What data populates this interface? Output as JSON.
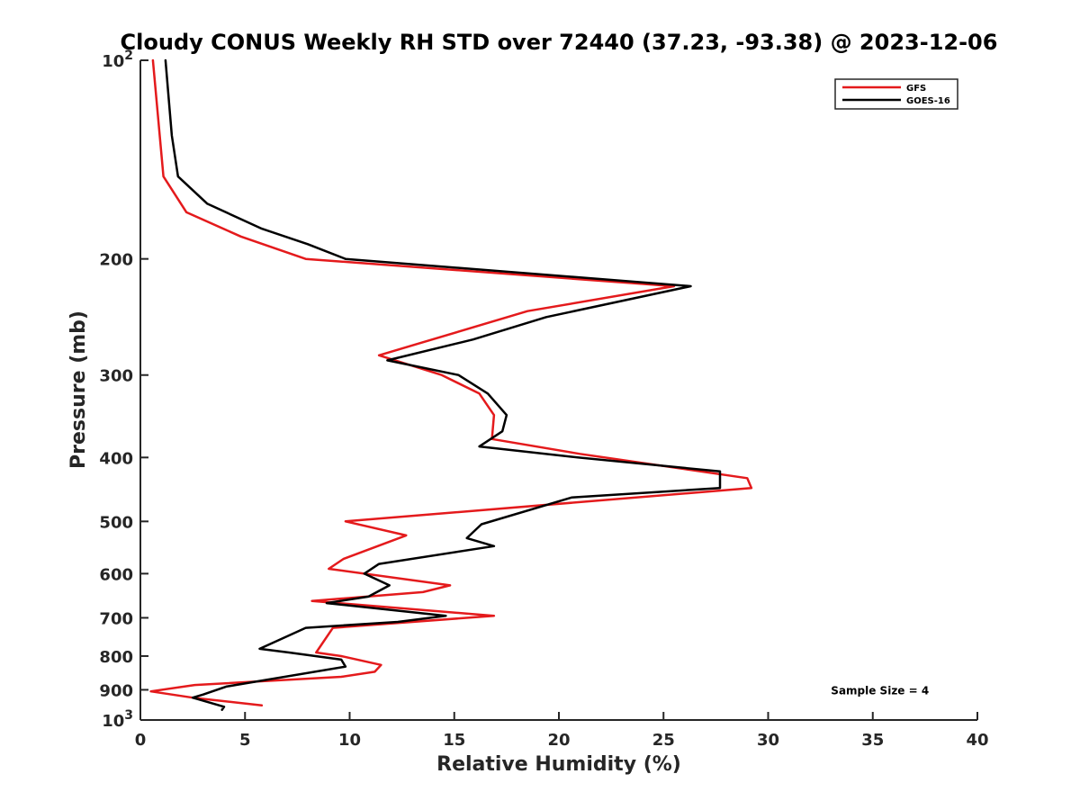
{
  "chart_data": {
    "type": "line",
    "title": "Cloudy CONUS Weekly RH STD over 72440 (37.23, -93.38) @ 2023-12-06",
    "xlabel": "Relative Humidity (%)",
    "ylabel": "Pressure (mb)",
    "xlim": [
      0,
      40
    ],
    "ylim": [
      1000,
      100
    ],
    "y_scale": "log",
    "y_direction": "reversed",
    "grid": false,
    "legend_position": "top-right",
    "x_ticks": [
      0,
      5,
      10,
      15,
      20,
      25,
      30,
      35,
      40
    ],
    "x_tick_labels": [
      "0",
      "5",
      "10",
      "15",
      "20",
      "25",
      "30",
      "35",
      "40"
    ],
    "y_ticks": [
      100,
      200,
      300,
      400,
      500,
      600,
      700,
      800,
      900,
      1000
    ],
    "y_tick_labels": [
      {
        "base": "10",
        "exp": "2"
      },
      {
        "base": "200",
        "exp": ""
      },
      {
        "base": "300",
        "exp": ""
      },
      {
        "base": "400",
        "exp": ""
      },
      {
        "base": "500",
        "exp": ""
      },
      {
        "base": "600",
        "exp": ""
      },
      {
        "base": "700",
        "exp": ""
      },
      {
        "base": "800",
        "exp": ""
      },
      {
        "base": "900",
        "exp": ""
      },
      {
        "base": "10",
        "exp": "3"
      }
    ],
    "series": [
      {
        "name": "GFS",
        "color": "#e41a1c",
        "points": [
          [
            0.6,
            100
          ],
          [
            1.1,
            150
          ],
          [
            2.2,
            170
          ],
          [
            4.8,
            185
          ],
          [
            7.9,
            200
          ],
          [
            25.5,
            220
          ],
          [
            18.5,
            240
          ],
          [
            11.4,
            280
          ],
          [
            14.4,
            300
          ],
          [
            16.2,
            320
          ],
          [
            16.9,
            345
          ],
          [
            16.8,
            375
          ],
          [
            21.0,
            395
          ],
          [
            29.0,
            430
          ],
          [
            29.2,
            445
          ],
          [
            9.8,
            500
          ],
          [
            12.7,
            525
          ],
          [
            9.7,
            570
          ],
          [
            9.0,
            590
          ],
          [
            14.8,
            625
          ],
          [
            13.5,
            640
          ],
          [
            8.2,
            660
          ],
          [
            16.9,
            695
          ],
          [
            9.2,
            725
          ],
          [
            8.4,
            790
          ],
          [
            9.6,
            800
          ],
          [
            11.5,
            825
          ],
          [
            11.2,
            845
          ],
          [
            9.6,
            860
          ],
          [
            2.6,
            885
          ],
          [
            0.5,
            905
          ],
          [
            2.5,
            925
          ],
          [
            5.8,
            950
          ]
        ]
      },
      {
        "name": "GOES-16",
        "color": "#000000",
        "points": [
          [
            1.2,
            100
          ],
          [
            1.5,
            130
          ],
          [
            1.8,
            150
          ],
          [
            3.2,
            165
          ],
          [
            5.8,
            180
          ],
          [
            8.0,
            190
          ],
          [
            9.8,
            200
          ],
          [
            26.3,
            220
          ],
          [
            19.4,
            245
          ],
          [
            15.9,
            265
          ],
          [
            11.8,
            285
          ],
          [
            15.2,
            300
          ],
          [
            16.6,
            320
          ],
          [
            17.5,
            345
          ],
          [
            17.3,
            365
          ],
          [
            16.2,
            385
          ],
          [
            20.9,
            400
          ],
          [
            27.7,
            420
          ],
          [
            27.7,
            445
          ],
          [
            20.6,
            460
          ],
          [
            16.3,
            505
          ],
          [
            15.6,
            530
          ],
          [
            16.9,
            545
          ],
          [
            11.4,
            580
          ],
          [
            10.7,
            600
          ],
          [
            11.9,
            625
          ],
          [
            10.9,
            650
          ],
          [
            8.9,
            665
          ],
          [
            14.6,
            695
          ],
          [
            12.3,
            710
          ],
          [
            7.9,
            725
          ],
          [
            5.7,
            780
          ],
          [
            7.1,
            790
          ],
          [
            9.6,
            810
          ],
          [
            9.8,
            830
          ],
          [
            4.1,
            890
          ],
          [
            3.0,
            915
          ],
          [
            2.5,
            925
          ],
          [
            4.0,
            955
          ],
          [
            3.9,
            965
          ]
        ]
      }
    ],
    "annotations": [
      {
        "text": "Sample Size = 4",
        "x": 33,
        "y": 900
      }
    ]
  }
}
